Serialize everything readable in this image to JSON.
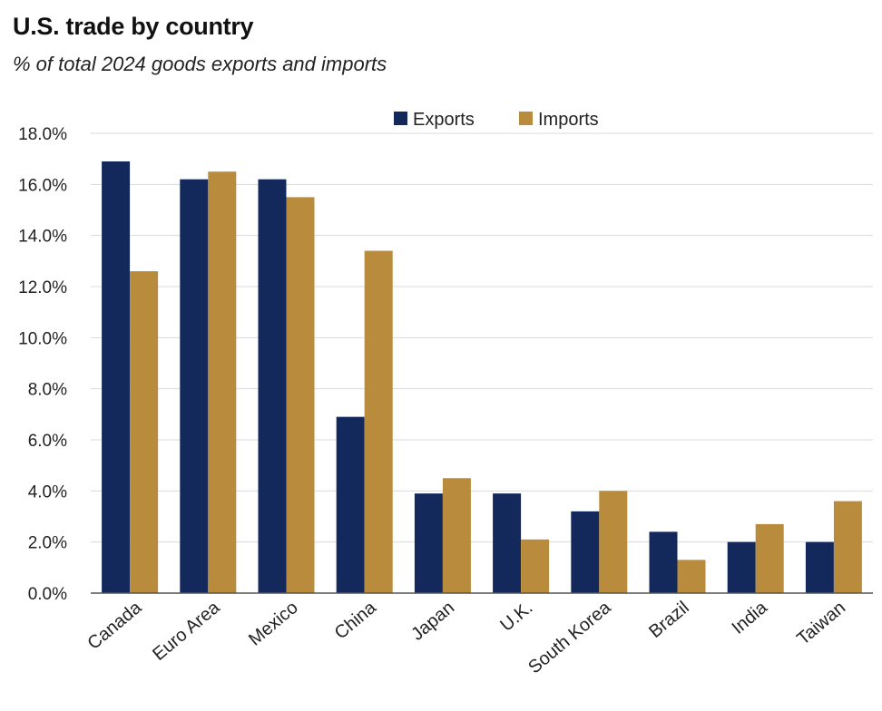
{
  "chart_data": {
    "type": "bar",
    "title": "U.S. trade by country",
    "subtitle": "% of total 2024 goods exports and imports",
    "categories": [
      "Canada",
      "Euro Area",
      "Mexico",
      "China",
      "Japan",
      "U.K.",
      "South Korea",
      "Brazil",
      "India",
      "Taiwan"
    ],
    "series": [
      {
        "name": "Exports",
        "color": "#13285b",
        "values": [
          16.9,
          16.2,
          16.2,
          6.9,
          3.9,
          3.9,
          3.2,
          2.4,
          2.0,
          2.0
        ]
      },
      {
        "name": "Imports",
        "color": "#b88c3c",
        "values": [
          12.6,
          16.5,
          15.5,
          13.4,
          4.5,
          2.1,
          4.0,
          1.3,
          2.7,
          3.6
        ]
      }
    ],
    "ylim": [
      0,
      18
    ],
    "yticks": [
      0,
      2,
      4,
      6,
      8,
      10,
      12,
      14,
      16,
      18
    ],
    "ytick_labels": [
      "0.0%",
      "2.0%",
      "4.0%",
      "6.0%",
      "8.0%",
      "10.0%",
      "12.0%",
      "14.0%",
      "16.0%",
      "18.0%"
    ],
    "grid": true,
    "legend_position": "top"
  }
}
